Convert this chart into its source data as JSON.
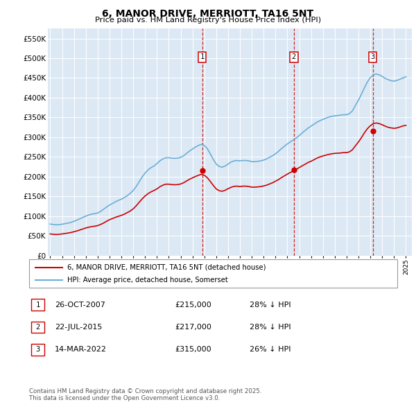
{
  "title": "6, MANOR DRIVE, MERRIOTT, TA16 5NT",
  "subtitle": "Price paid vs. HM Land Registry's House Price Index (HPI)",
  "ylabel_ticks": [
    "£0",
    "£50K",
    "£100K",
    "£150K",
    "£200K",
    "£250K",
    "£300K",
    "£350K",
    "£400K",
    "£450K",
    "£500K",
    "£550K"
  ],
  "ytick_values": [
    0,
    50000,
    100000,
    150000,
    200000,
    250000,
    300000,
    350000,
    400000,
    450000,
    500000,
    550000
  ],
  "ylim": [
    0,
    575000
  ],
  "background_color": "#dce9f5",
  "plot_bg_color": "#dce9f5",
  "grid_color": "#ffffff",
  "sale_dates_num": [
    2007.82,
    2015.55,
    2022.2
  ],
  "sale_prices": [
    215000,
    217000,
    315000
  ],
  "sale_labels": [
    "1",
    "2",
    "3"
  ],
  "legend_line1": "6, MANOR DRIVE, MERRIOTT, TA16 5NT (detached house)",
  "legend_line2": "HPI: Average price, detached house, Somerset",
  "table_data": [
    [
      "1",
      "26-OCT-2007",
      "£215,000",
      "28% ↓ HPI"
    ],
    [
      "2",
      "22-JUL-2015",
      "£217,000",
      "28% ↓ HPI"
    ],
    [
      "3",
      "14-MAR-2022",
      "£315,000",
      "26% ↓ HPI"
    ]
  ],
  "footer": "Contains HM Land Registry data © Crown copyright and database right 2025.\nThis data is licensed under the Open Government Licence v3.0.",
  "hpi_color": "#6baed6",
  "sale_line_color": "#cc0000",
  "vline_color": "#cc0000",
  "hpi_data_years": [
    1995.0,
    1995.25,
    1995.5,
    1995.75,
    1996.0,
    1996.25,
    1996.5,
    1996.75,
    1997.0,
    1997.25,
    1997.5,
    1997.75,
    1998.0,
    1998.25,
    1998.5,
    1998.75,
    1999.0,
    1999.25,
    1999.5,
    1999.75,
    2000.0,
    2000.25,
    2000.5,
    2000.75,
    2001.0,
    2001.25,
    2001.5,
    2001.75,
    2002.0,
    2002.25,
    2002.5,
    2002.75,
    2003.0,
    2003.25,
    2003.5,
    2003.75,
    2004.0,
    2004.25,
    2004.5,
    2004.75,
    2005.0,
    2005.25,
    2005.5,
    2005.75,
    2006.0,
    2006.25,
    2006.5,
    2006.75,
    2007.0,
    2007.25,
    2007.5,
    2007.75,
    2008.0,
    2008.25,
    2008.5,
    2008.75,
    2009.0,
    2009.25,
    2009.5,
    2009.75,
    2010.0,
    2010.25,
    2010.5,
    2010.75,
    2011.0,
    2011.25,
    2011.5,
    2011.75,
    2012.0,
    2012.25,
    2012.5,
    2012.75,
    2013.0,
    2013.25,
    2013.5,
    2013.75,
    2014.0,
    2014.25,
    2014.5,
    2014.75,
    2015.0,
    2015.25,
    2015.5,
    2015.75,
    2016.0,
    2016.25,
    2016.5,
    2016.75,
    2017.0,
    2017.25,
    2017.5,
    2017.75,
    2018.0,
    2018.25,
    2018.5,
    2018.75,
    2019.0,
    2019.25,
    2019.5,
    2019.75,
    2020.0,
    2020.25,
    2020.5,
    2020.75,
    2021.0,
    2021.25,
    2021.5,
    2021.75,
    2022.0,
    2022.25,
    2022.5,
    2022.75,
    2023.0,
    2023.25,
    2023.5,
    2023.75,
    2024.0,
    2024.25,
    2024.5,
    2024.75,
    2025.0
  ],
  "hpi_data_values": [
    80000,
    79000,
    78000,
    78500,
    79500,
    81000,
    82500,
    84000,
    87000,
    90000,
    93500,
    97000,
    100000,
    103000,
    105000,
    106500,
    108000,
    112000,
    117500,
    123000,
    128000,
    132000,
    136500,
    140000,
    143000,
    147000,
    152000,
    158000,
    165000,
    175000,
    187000,
    199000,
    209000,
    217000,
    223000,
    227000,
    233000,
    240000,
    245000,
    248000,
    248000,
    247000,
    246500,
    247000,
    249000,
    253000,
    259000,
    265000,
    270000,
    275000,
    279000,
    282000,
    279000,
    271000,
    258000,
    244000,
    232000,
    226000,
    224000,
    227000,
    232000,
    237000,
    240000,
    241000,
    240000,
    241000,
    241000,
    240000,
    238000,
    238000,
    239000,
    240000,
    242000,
    245000,
    249000,
    253000,
    258000,
    264000,
    271000,
    277000,
    283000,
    288000,
    293000,
    298000,
    304000,
    311000,
    317000,
    323000,
    328000,
    333000,
    338000,
    342000,
    345000,
    348000,
    351000,
    353000,
    354000,
    355000,
    356000,
    357000,
    357000,
    360000,
    367000,
    381000,
    394000,
    409000,
    425000,
    440000,
    451000,
    458000,
    460000,
    458000,
    454000,
    449000,
    446000,
    443000,
    442000,
    444000,
    447000,
    450000,
    453000
  ],
  "sale_indexed_years": [
    1995.0,
    1995.25,
    1995.5,
    1995.75,
    1996.0,
    1996.25,
    1996.5,
    1996.75,
    1997.0,
    1997.25,
    1997.5,
    1997.75,
    1998.0,
    1998.25,
    1998.5,
    1998.75,
    1999.0,
    1999.25,
    1999.5,
    1999.75,
    2000.0,
    2000.25,
    2000.5,
    2000.75,
    2001.0,
    2001.25,
    2001.5,
    2001.75,
    2002.0,
    2002.25,
    2002.5,
    2002.75,
    2003.0,
    2003.25,
    2003.5,
    2003.75,
    2004.0,
    2004.25,
    2004.5,
    2004.75,
    2005.0,
    2005.25,
    2005.5,
    2005.75,
    2006.0,
    2006.25,
    2006.5,
    2006.75,
    2007.0,
    2007.25,
    2007.5,
    2007.75,
    2008.0,
    2008.25,
    2008.5,
    2008.75,
    2009.0,
    2009.25,
    2009.5,
    2009.75,
    2010.0,
    2010.25,
    2010.5,
    2010.75,
    2011.0,
    2011.25,
    2011.5,
    2011.75,
    2012.0,
    2012.25,
    2012.5,
    2012.75,
    2013.0,
    2013.25,
    2013.5,
    2013.75,
    2014.0,
    2014.25,
    2014.5,
    2014.75,
    2015.0,
    2015.25,
    2015.5,
    2015.75,
    2016.0,
    2016.25,
    2016.5,
    2016.75,
    2017.0,
    2017.25,
    2017.5,
    2017.75,
    2018.0,
    2018.25,
    2018.5,
    2018.75,
    2019.0,
    2019.25,
    2019.5,
    2019.75,
    2020.0,
    2020.25,
    2020.5,
    2020.75,
    2021.0,
    2021.25,
    2021.5,
    2021.75,
    2022.0,
    2022.25,
    2022.5,
    2022.75,
    2023.0,
    2023.25,
    2023.5,
    2023.75,
    2024.0,
    2024.25,
    2024.5,
    2024.75,
    2025.0
  ],
  "sale_indexed_values": [
    55000,
    54000,
    53500,
    54000,
    55000,
    56000,
    57200,
    58500,
    60500,
    62500,
    65000,
    67500,
    70000,
    72000,
    73500,
    74500,
    76000,
    79000,
    82500,
    87000,
    91000,
    94000,
    97000,
    99500,
    102000,
    105000,
    109000,
    113000,
    118500,
    126000,
    135000,
    143500,
    151000,
    157000,
    161500,
    165000,
    169000,
    174500,
    178500,
    181000,
    181000,
    180000,
    179500,
    180000,
    181500,
    184500,
    189000,
    193500,
    197000,
    200500,
    203500,
    206000,
    203500,
    197500,
    188000,
    178000,
    169000,
    164500,
    163000,
    165500,
    169500,
    173000,
    175500,
    176000,
    175000,
    176000,
    176000,
    175000,
    173500,
    173500,
    174000,
    175000,
    176500,
    178500,
    181500,
    184500,
    188500,
    192500,
    197500,
    202000,
    206500,
    210500,
    214500,
    218500,
    223000,
    227500,
    231500,
    236000,
    239000,
    243000,
    247000,
    250000,
    252500,
    254500,
    256500,
    258000,
    259000,
    259500,
    260000,
    261000,
    261000,
    263000,
    268500,
    278500,
    288000,
    299000,
    311000,
    321500,
    329000,
    334500,
    336000,
    334500,
    331500,
    328000,
    325000,
    323500,
    322500,
    323500,
    326000,
    328500,
    330000
  ],
  "xmin": 1994.8,
  "xmax": 2025.5
}
